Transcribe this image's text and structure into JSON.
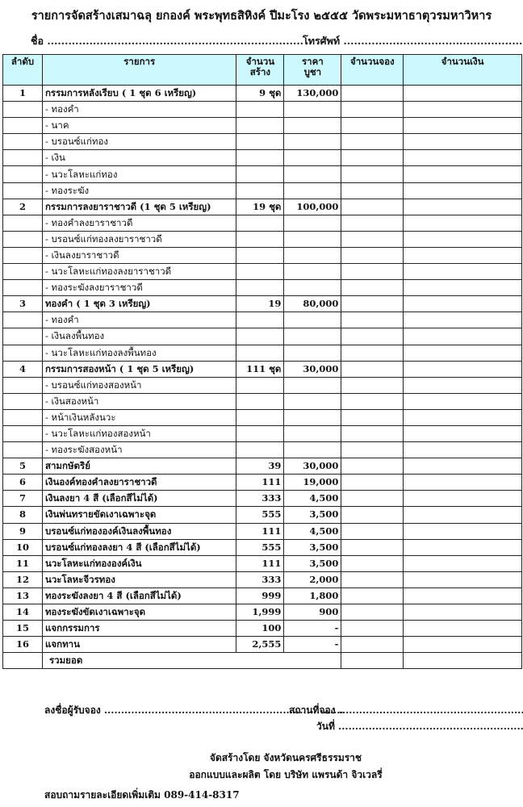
{
  "title": "รายการจัดสร้างเสมาฉลุ ยกองค์ พระพุทธสิหิงค์ ปีมะโรง ๒๕๕๕    วัดพระมหาธาตุวรมหาวิหาร",
  "name_label": "ชื่อ .........................................................................",
  "phone_label": "โทรศัพท์ ...................................................",
  "table": {
    "headers": [
      "ลำดับ",
      "รายการ",
      "จำนวนสร้าง",
      "ราคาบูชา",
      "จำนวนจอง",
      "จำนวนเงิน"
    ],
    "header_lines": {
      "qty": [
        "จำนวน",
        "สร้าง"
      ],
      "price": [
        "ราคา",
        "บูชา"
      ]
    },
    "rows": [
      {
        "no": "1",
        "item": "กรรมการหลังเรียบ  ( 1 ชุด 6 เหรียญ)",
        "qty": "9 ชุด",
        "price": "130,000",
        "subs": [
          "- ทองคำ",
          "-  นาค",
          "- บรอนซ์แก่ทอง",
          "- เงิน",
          "- นวะโลหะแก่ทอง",
          "- ทองระฆัง"
        ]
      },
      {
        "no": "2",
        "item": "กรรมการลงยาราชาวดี (1 ชุด 5 เหรียญ)",
        "qty": "19 ชุด",
        "price": "100,000",
        "subs": [
          "- ทองคำลงยาราชาวดี",
          "- บรอนซ์แก่ทองลงยาราชาวดี",
          "- เงินลงยาราชาวดี",
          "- นวะโลหะแก่ทองลงยาราชาวดี",
          "- ทองระฆังลงยาราชาวดี"
        ]
      },
      {
        "no": "3",
        "item": "ทองคำ ( 1 ชุด 3 เหรียญ)",
        "qty": "19",
        "price": "80,000",
        "subs": [
          "- ทองคำ",
          "- เงินลงพื้นทอง",
          "- นวะโลหะแก่ทองลงพื้นทอง"
        ]
      },
      {
        "no": "4",
        "item": "กรรมการสองหน้า ( 1 ชุด 5 เหรียญ)",
        "qty": "111 ชุด",
        "price": "30,000",
        "subs": [
          "- บรอนซ์แก่ทองสองหน้า",
          "- เงินสองหน้า",
          "-  หน้าเงินหลังนวะ",
          "- นวะโลหะแก่ทองสองหน้า",
          "- ทองระฆังสองหน้า"
        ]
      },
      {
        "no": "5",
        "item": "สามกษัตริย์",
        "qty": "39",
        "price": "30,000",
        "subs": []
      },
      {
        "no": "6",
        "item": "เงินองค์ทองคำลงยาราชาวดี",
        "qty": "111",
        "price": "19,000",
        "subs": []
      },
      {
        "no": "7",
        "item": "เงินลงยา 4 สี    (เลือกสีไม่ได้)",
        "qty": "333",
        "price": "4,500",
        "subs": []
      },
      {
        "no": "8",
        "item": "เงินพ่นทรายขัดเงาเฉพาะจุด",
        "qty": "555",
        "price": "3,500",
        "subs": []
      },
      {
        "no": "9",
        "item": "บรอนซ์แก่ทององค์เงินลงพื้นทอง",
        "qty": "111",
        "price": "4,500",
        "subs": []
      },
      {
        "no": "10",
        "item": "บรอนซ์แก่ทองลงยา 4 สี (เลือกสีไม่ได้)",
        "qty": "555",
        "price": "3,500",
        "subs": []
      },
      {
        "no": "11",
        "item": "นวะโลหะแก่ทององค์เงิน",
        "qty": "111",
        "price": "3,500",
        "subs": []
      },
      {
        "no": "12",
        "item": "นวะโลหะจีวรทอง",
        "qty": "333",
        "price": "2,000",
        "subs": []
      },
      {
        "no": "13",
        "item": "ทองระฆังลงยา 4 สี (เลือกสีไม่ได้)",
        "qty": "999",
        "price": "1,800",
        "subs": []
      },
      {
        "no": "14",
        "item": "ทองระฆังขัดเงาเฉพาะจุด",
        "qty": "1,999",
        "price": "900",
        "subs": []
      },
      {
        "no": "15",
        "item": "แจกกรรมการ",
        "qty": "100",
        "price": "-",
        "subs": []
      },
      {
        "no": "16",
        "item": "แจกทาน",
        "qty": "2,555",
        "price": "-",
        "subs": []
      }
    ],
    "total_label": "รวมยอด"
  },
  "footer": {
    "signer": "ลงชื่อผู้รับจอง .......................................................................",
    "place": "สถานที่จอง   .............................................................",
    "date": "วันที่   .............................................................",
    "made_by": "จัดสร้างโดย จังหวัดนครศรีธรรมราช",
    "designed_by": "ออกแบบและผลิต โดย บริษัท แพรนด้า จิวเวลรี่",
    "contact": "สอบถามรายละเอียดเพิ่มเติม   089-414-8317"
  },
  "colors": {
    "header_bg": "#ccf7fb"
  }
}
